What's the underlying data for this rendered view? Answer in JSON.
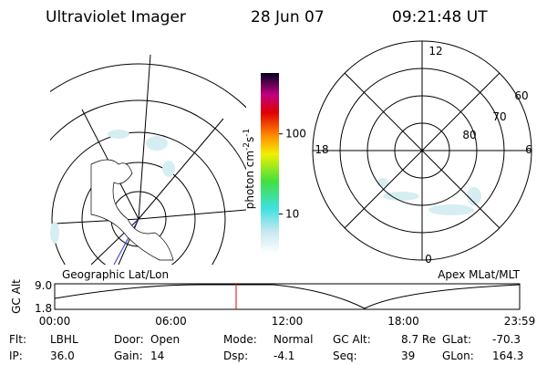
{
  "header": {
    "title": "Ultraviolet Imager",
    "date": "28 Jun 07",
    "time": "09:21:48 UT"
  },
  "colorbar": {
    "label": "photon cm",
    "exp1": "-2",
    "unit2": "s",
    "exp2": "-1",
    "log": true,
    "range": [
      3.2,
      575
    ],
    "ticks": [
      10,
      100
    ]
  },
  "maps": {
    "left_label": "Geographic Lat/Lon",
    "right_label": "Apex MLat/MLT"
  },
  "polar": {
    "mlt": [
      "12",
      "18",
      "6",
      "0"
    ],
    "mlat": [
      "60",
      "70",
      "80"
    ]
  },
  "altitude": {
    "axis_label": "GC Alt",
    "yticks": [
      {
        "value": 9,
        "label": "9.0"
      },
      {
        "value": 1.8,
        "label": "1.8"
      }
    ],
    "xticks": [
      "00:00",
      "06:00",
      "12:00",
      "18:00",
      "23:59"
    ]
  },
  "footer": [
    [
      {
        "label": "Flt:",
        "value": "LBHL"
      },
      {
        "label": "Door:",
        "value": "Open"
      },
      {
        "label": "Mode:",
        "value": "Normal"
      },
      {
        "label": "GC Alt:",
        "value": "8.7 Re"
      },
      {
        "label": "GLat:",
        "value": "-70.3"
      }
    ],
    [
      {
        "label": "IP:",
        "value": "36.0"
      },
      {
        "label": "Gain:",
        "value": "14"
      },
      {
        "label": "Dsp:",
        "value": "-4.1"
      },
      {
        "label": "Seq:",
        "value": "39"
      },
      {
        "label": "GLon:",
        "value": "164.3"
      }
    ]
  ]
}
